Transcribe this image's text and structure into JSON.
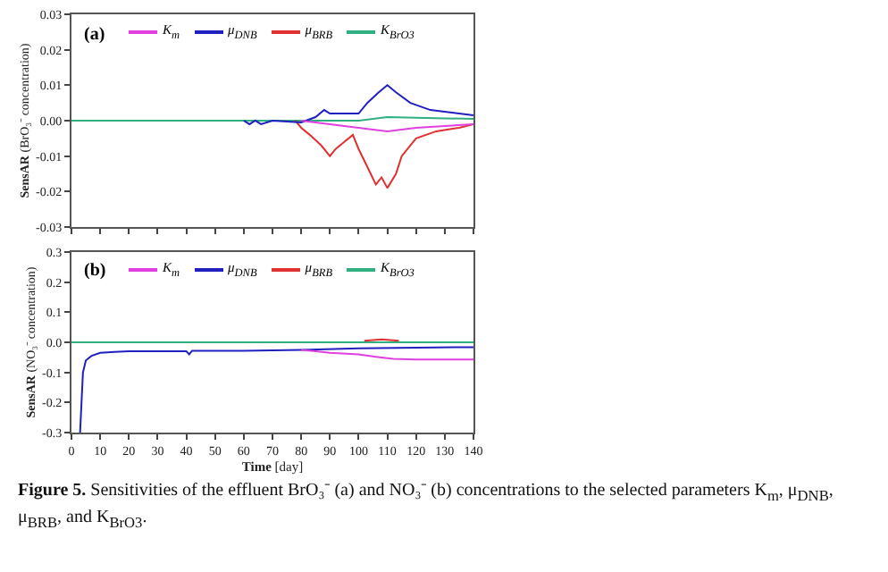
{
  "chart_data": [
    {
      "type": "line",
      "ylabel": "SensAR (BrO₃⁻ concentration)",
      "annotations": [
        "(a)"
      ],
      "xlim": [
        0,
        140
      ],
      "xticks": [
        0,
        10,
        20,
        30,
        40,
        50,
        60,
        70,
        80,
        90,
        100,
        110,
        120,
        130,
        140
      ],
      "ylim": [
        -0.03,
        0.03
      ],
      "yticks": [
        {
          "value": -0.03,
          "label": "-0.03"
        },
        {
          "value": -0.02,
          "label": "-0.02"
        },
        {
          "value": -0.01,
          "label": "-0.01"
        },
        {
          "value": 0,
          "label": "0.00"
        },
        {
          "value": 0.01,
          "label": "0.01"
        },
        {
          "value": 0.02,
          "label": "0.02"
        },
        {
          "value": 0.03,
          "label": "0.03"
        }
      ],
      "tick_labels": "y",
      "grid": false,
      "legend": "top",
      "line_style": "solid",
      "series": [
        {
          "name": "K$_{m}$",
          "color": "#e040e0",
          "x": [
            80,
            85,
            90,
            100,
            110,
            120,
            130,
            140
          ],
          "values": [
            0,
            -0.0005,
            -0.001,
            -0.002,
            -0.003,
            -0.002,
            -0.0015,
            -0.001
          ]
        },
        {
          "name": "μ$_{DNB}$",
          "color": "#2020c0",
          "x": [
            60,
            62,
            64,
            66,
            70,
            80,
            85,
            88,
            90,
            100,
            103,
            107,
            110,
            113,
            118,
            125,
            135,
            140
          ],
          "values": [
            0,
            -0.001,
            0,
            -0.001,
            0,
            -0.0005,
            0.001,
            0.003,
            0.002,
            0.002,
            0.005,
            0.008,
            0.01,
            0.008,
            0.005,
            0.003,
            0.002,
            0.0015
          ]
        },
        {
          "name": "μ$_{BRB}$",
          "color": "#e03030",
          "x": [
            78,
            80,
            83,
            87,
            90,
            92,
            95,
            98,
            100,
            103,
            106,
            108,
            110,
            113,
            115,
            120,
            127,
            135,
            140
          ],
          "values": [
            0,
            -0.002,
            -0.004,
            -0.007,
            -0.01,
            -0.008,
            -0.006,
            -0.004,
            -0.008,
            -0.013,
            -0.018,
            -0.016,
            -0.019,
            -0.015,
            -0.01,
            -0.005,
            -0.003,
            -0.002,
            -0.001
          ]
        },
        {
          "name": "K$_{BrO3}$",
          "color": "#30b080",
          "x": [
            0,
            30,
            40,
            100,
            110,
            120,
            140
          ],
          "values": [
            0,
            0,
            0,
            0,
            0.001,
            0.0008,
            0.0005
          ]
        }
      ]
    },
    {
      "type": "line",
      "xlabel": "Time [day]",
      "ylabel": "SensAR (NO₃⁻ concentration)",
      "annotations": [
        "(b)",
        "Figure 5. Sensitivities of the effluent BrO₃⁻ (a) and NO₃⁻ (b) concentrations to the selected parameters K$_{m}$, μ$_{DNB}$, μ$_{BRB}$, and K$_{BrO3}$."
      ],
      "xlim": [
        0,
        140
      ],
      "xticks": [
        0,
        10,
        20,
        30,
        40,
        50,
        60,
        70,
        80,
        90,
        100,
        110,
        120,
        130,
        140
      ],
      "ylim": [
        -0.3,
        0.3
      ],
      "yticks": [
        -0.3,
        -0.2,
        -0.1,
        {
          "value": 0,
          "label": "0.0"
        },
        0.1,
        0.2,
        0.3
      ],
      "grid": false,
      "legend": "top",
      "line_style": "solid",
      "series": [
        {
          "name": "K$_{m}$",
          "color": "#e040e0",
          "x": [
            80,
            85,
            90,
            100,
            106,
            112,
            120,
            140
          ],
          "values": [
            -0.025,
            -0.03,
            -0.035,
            -0.04,
            -0.048,
            -0.055,
            -0.057,
            -0.057
          ]
        },
        {
          "name": "μ$_{DNB}$",
          "color": "#2020c0",
          "x": [
            3,
            4,
            5,
            7,
            10,
            15,
            20,
            30,
            40,
            41,
            42,
            60,
            80,
            100,
            120,
            140
          ],
          "values": [
            -0.3,
            -0.1,
            -0.06,
            -0.045,
            -0.035,
            -0.032,
            -0.03,
            -0.03,
            -0.03,
            -0.04,
            -0.028,
            -0.028,
            -0.025,
            -0.02,
            -0.018,
            -0.016
          ]
        },
        {
          "name": "μ$_{BRB}$",
          "color": "#e03030",
          "x": [
            102,
            108,
            114
          ],
          "values": [
            0.005,
            0.01,
            0.005
          ]
        },
        {
          "name": "K$_{BrO3}$",
          "color": "#30b080",
          "x": [
            0,
            30,
            40,
            140
          ],
          "values": [
            0,
            0,
            0,
            0
          ]
        }
      ]
    }
  ]
}
